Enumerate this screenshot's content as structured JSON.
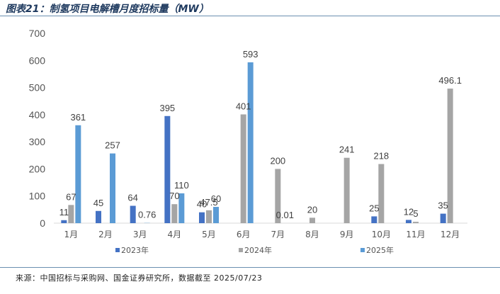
{
  "header": {
    "title": "图表21：制氢项目电解槽月度招标量（MW）"
  },
  "footer": {
    "source": "来源：中国招标与采购网、国金证券研究所，数据截至 2025/07/23"
  },
  "chart_data": {
    "type": "bar",
    "title": "图表21：制氢项目电解槽月度招标量（MW）",
    "xlabel": "",
    "ylabel": "",
    "categories": [
      "1月",
      "2月",
      "3月",
      "4月",
      "5月",
      "6月",
      "7月",
      "8月",
      "9月",
      "10月",
      "11月",
      "12月"
    ],
    "series": [
      {
        "name": "2023年",
        "color": "#4472c4",
        "values": [
          11,
          45,
          64,
          395,
          40,
          null,
          null,
          null,
          null,
          25,
          12,
          35
        ],
        "labels": [
          "11",
          "45",
          "64",
          "395",
          "40",
          "",
          "",
          "",
          "",
          "25",
          "12",
          "35"
        ]
      },
      {
        "name": "2024年",
        "color": "#a5a5a5",
        "values": [
          67,
          null,
          null,
          70,
          47.5,
          401,
          200,
          20,
          241,
          218,
          5,
          496.1
        ],
        "labels": [
          "67",
          "",
          "",
          "70",
          "47.5",
          "401",
          "200",
          "20",
          "241",
          "218",
          "5",
          "496.1"
        ]
      },
      {
        "name": "2025年",
        "color": "#5b9bd5",
        "values": [
          361,
          257,
          0.76,
          110,
          60,
          593,
          0.01,
          null,
          null,
          null,
          null,
          null
        ],
        "labels": [
          "361",
          "257",
          "0.76",
          "110",
          "60",
          "593",
          "0.01",
          "",
          "",
          "",
          "",
          ""
        ]
      }
    ],
    "ylim": [
      0,
      700
    ],
    "yticks": [
      0,
      100,
      200,
      300,
      400,
      500,
      600,
      700
    ],
    "grid": false,
    "legend": "bottom"
  }
}
